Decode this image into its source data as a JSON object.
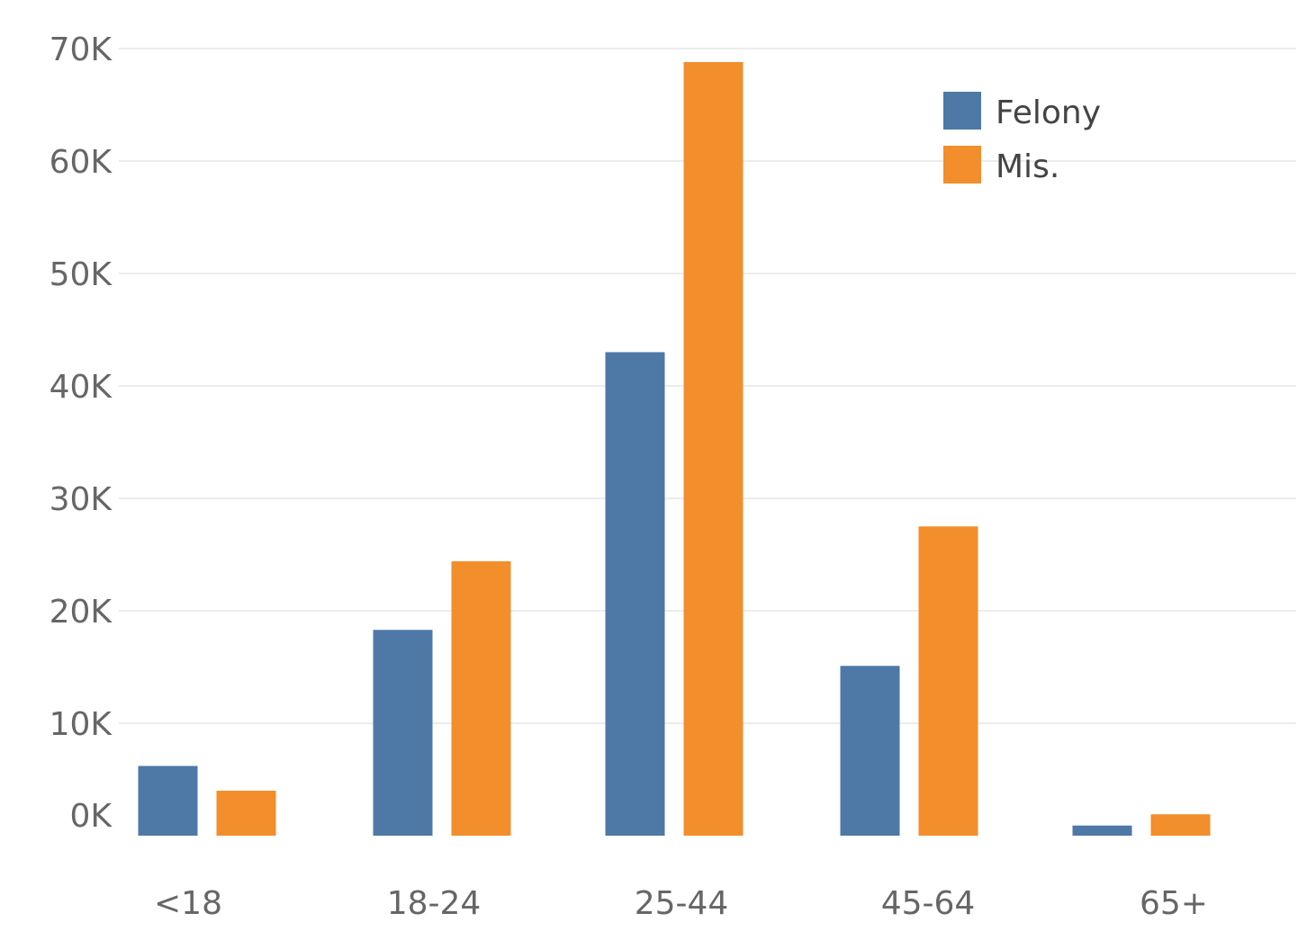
{
  "chart_data": {
    "type": "bar",
    "title": "",
    "xlabel": "",
    "ylabel": "",
    "categories": [
      "<18",
      "18-24",
      "25-44",
      "45-64",
      "65+"
    ],
    "series": [
      {
        "name": "Felony",
        "color": "#4e79a7",
        "values": [
          6200,
          18300,
          43000,
          15100,
          900
        ]
      },
      {
        "name": "Mis.",
        "color": "#f28e2b",
        "values": [
          4000,
          24400,
          68800,
          27500,
          1900
        ]
      }
    ],
    "ylim": [
      0,
      70000
    ],
    "yticks": [
      0,
      10000,
      20000,
      30000,
      40000,
      50000,
      60000,
      70000
    ],
    "ytick_labels": [
      "0K",
      "10K",
      "20K",
      "30K",
      "40K",
      "50K",
      "60K",
      "70K"
    ],
    "grid": true,
    "legend": "top-right"
  }
}
